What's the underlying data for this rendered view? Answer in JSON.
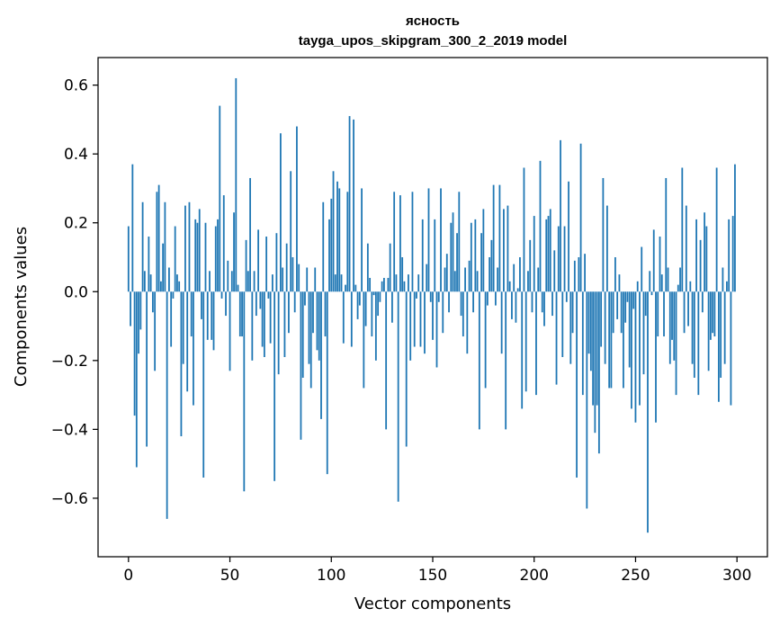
{
  "chart_data": {
    "type": "bar",
    "title": "ясность",
    "subtitle": "tayga_upos_skipgram_300_2_2019 model",
    "xlabel": "Vector components",
    "ylabel": "Components values",
    "xlim": [
      -15,
      315
    ],
    "ylim": [
      -0.77,
      0.68
    ],
    "xticks": [
      0,
      50,
      100,
      150,
      200,
      250,
      300
    ],
    "xtick_labels": [
      "0",
      "50",
      "100",
      "150",
      "200",
      "250",
      "300"
    ],
    "yticks": [
      -0.6,
      -0.4,
      -0.2,
      0.0,
      0.2,
      0.4,
      0.6
    ],
    "ytick_labels": [
      "−0.6",
      "−0.4",
      "−0.2",
      "0.0",
      "0.2",
      "0.4",
      "0.6"
    ],
    "grid": false,
    "bar_color": "#1f77b4",
    "x": "0..299 (component index)",
    "values": [
      0.19,
      -0.1,
      0.37,
      -0.36,
      -0.51,
      -0.18,
      -0.11,
      0.26,
      0.06,
      -0.45,
      0.16,
      0.05,
      -0.06,
      -0.23,
      0.29,
      0.31,
      0.03,
      0.14,
      0.26,
      -0.66,
      0.07,
      -0.16,
      -0.02,
      0.19,
      0.05,
      0.03,
      -0.42,
      -0.21,
      0.25,
      -0.29,
      0.26,
      -0.13,
      -0.33,
      0.21,
      0.2,
      0.24,
      -0.08,
      -0.54,
      0.2,
      -0.14,
      0.06,
      -0.14,
      -0.17,
      0.19,
      0.21,
      0.54,
      -0.02,
      0.28,
      -0.07,
      0.09,
      -0.23,
      0.06,
      0.23,
      0.62,
      0.02,
      -0.13,
      -0.13,
      -0.58,
      0.15,
      0.06,
      0.33,
      -0.2,
      0.06,
      -0.07,
      0.18,
      -0.05,
      -0.16,
      -0.19,
      0.16,
      -0.02,
      -0.15,
      0.05,
      -0.55,
      0.17,
      -0.24,
      0.46,
      0.07,
      -0.19,
      0.14,
      -0.12,
      0.35,
      0.1,
      -0.06,
      0.48,
      0.08,
      -0.43,
      -0.25,
      -0.04,
      0.07,
      -0.21,
      -0.28,
      -0.12,
      0.07,
      -0.17,
      -0.2,
      -0.37,
      0.26,
      -0.13,
      -0.53,
      0.21,
      0.27,
      0.35,
      0.05,
      0.32,
      0.3,
      0.05,
      -0.15,
      0.02,
      0.29,
      0.51,
      -0.16,
      0.5,
      0.02,
      -0.08,
      -0.04,
      0.3,
      -0.28,
      -0.1,
      0.14,
      0.04,
      -0.13,
      -0.01,
      -0.2,
      -0.07,
      -0.03,
      0.03,
      0.04,
      -0.4,
      0.04,
      0.14,
      -0.09,
      0.29,
      0.05,
      -0.61,
      0.28,
      0.1,
      0.03,
      -0.45,
      0.05,
      -0.2,
      0.29,
      -0.16,
      -0.02,
      0.05,
      -0.16,
      0.21,
      -0.18,
      0.08,
      0.3,
      -0.03,
      -0.14,
      0.21,
      -0.22,
      -0.03,
      0.3,
      -0.12,
      0.07,
      0.11,
      -0.06,
      0.2,
      0.23,
      0.06,
      0.17,
      0.29,
      -0.07,
      -0.13,
      0.07,
      -0.18,
      0.09,
      0.2,
      -0.06,
      0.21,
      0.06,
      -0.4,
      0.17,
      0.24,
      -0.28,
      -0.04,
      0.1,
      0.15,
      0.31,
      -0.04,
      0.07,
      0.31,
      -0.18,
      0.24,
      -0.4,
      0.25,
      0.03,
      -0.08,
      0.08,
      -0.09,
      0.01,
      0.1,
      -0.34,
      0.36,
      -0.29,
      0.06,
      0.15,
      -0.06,
      0.22,
      -0.3,
      0.07,
      0.38,
      -0.06,
      -0.1,
      0.21,
      0.22,
      0.24,
      -0.07,
      0.12,
      -0.27,
      0.19,
      0.44,
      -0.19,
      0.19,
      -0.03,
      0.32,
      -0.21,
      -0.12,
      0.09,
      -0.54,
      0.1,
      0.43,
      -0.3,
      0.11,
      -0.63,
      -0.18,
      -0.23,
      -0.33,
      -0.41,
      -0.33,
      -0.47,
      -0.16,
      0.33,
      -0.21,
      0.25,
      -0.28,
      -0.28,
      -0.12,
      0.1,
      -0.08,
      0.05,
      -0.12,
      -0.28,
      -0.09,
      -0.03,
      -0.22,
      -0.34,
      -0.05,
      -0.38,
      0.03,
      -0.33,
      0.13,
      -0.24,
      -0.07,
      -0.7,
      0.06,
      -0.01,
      0.18,
      -0.38,
      -0.13,
      0.16,
      0.05,
      -0.13,
      0.33,
      0.07,
      -0.21,
      -0.14,
      -0.2,
      -0.3,
      0.02,
      0.07,
      0.36,
      -0.12,
      0.25,
      -0.1,
      0.03,
      -0.21,
      -0.25,
      0.21,
      -0.3,
      0.15,
      -0.06,
      0.23,
      0.19,
      -0.23,
      -0.14,
      -0.12,
      -0.13,
      0.36,
      -0.32,
      -0.25,
      0.07,
      -0.21,
      0.03,
      0.21,
      -0.33,
      0.22,
      0.37
    ]
  }
}
